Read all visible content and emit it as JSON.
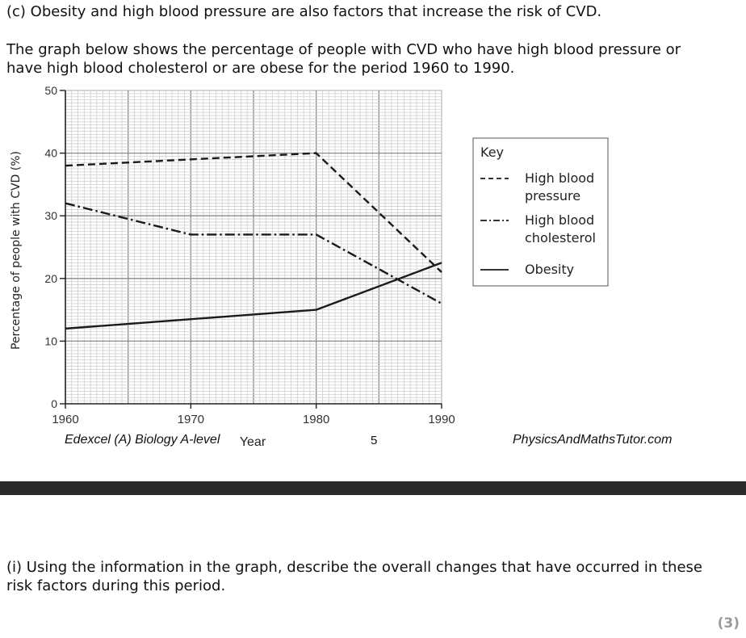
{
  "question_c": "(c) Obesity and high blood pressure are also factors that increase the risk of CVD.",
  "intro_lines": [
    "The graph below shows the percentage of people with CVD who have high blood pressure or",
    "have high blood cholesterol or are obese for the period 1960 to 1990."
  ],
  "chart_data": {
    "type": "line",
    "xlabel": "Year",
    "ylabel": "Percentage of people with CVD (%)",
    "x_ticks": [
      "1960",
      "1970",
      "1980",
      "1990"
    ],
    "y_ticks": [
      "0",
      "10",
      "20",
      "30",
      "40",
      "50"
    ],
    "xlim": [
      1960,
      1990
    ],
    "ylim": [
      0,
      50
    ],
    "grid": true,
    "legend_title": "Key",
    "legend_position": "right",
    "series": [
      {
        "name": "High blood pressure",
        "name_lines": [
          "High blood",
          "pressure"
        ],
        "style": "dashed",
        "x": [
          1960,
          1980,
          1990
        ],
        "y": [
          38,
          40,
          21
        ]
      },
      {
        "name": "High blood cholesterol",
        "name_lines": [
          "High blood",
          "cholesterol"
        ],
        "style": "dash-dot",
        "x": [
          1960,
          1970,
          1980,
          1990
        ],
        "y": [
          32,
          27,
          27,
          16
        ]
      },
      {
        "name": "Obesity",
        "name_lines": [
          "Obesity"
        ],
        "style": "solid",
        "x": [
          1960,
          1980,
          1990
        ],
        "y": [
          12,
          15,
          22.5
        ]
      }
    ]
  },
  "footer": {
    "left": "Edexcel (A) Biology A-level",
    "page": "5",
    "right": "PhysicsAndMathsTutor.com"
  },
  "question_i_lines": [
    "(i) Using the information in the graph, describe the overall changes that have occurred in these",
    "risk factors during this period."
  ],
  "marks": "(3)"
}
